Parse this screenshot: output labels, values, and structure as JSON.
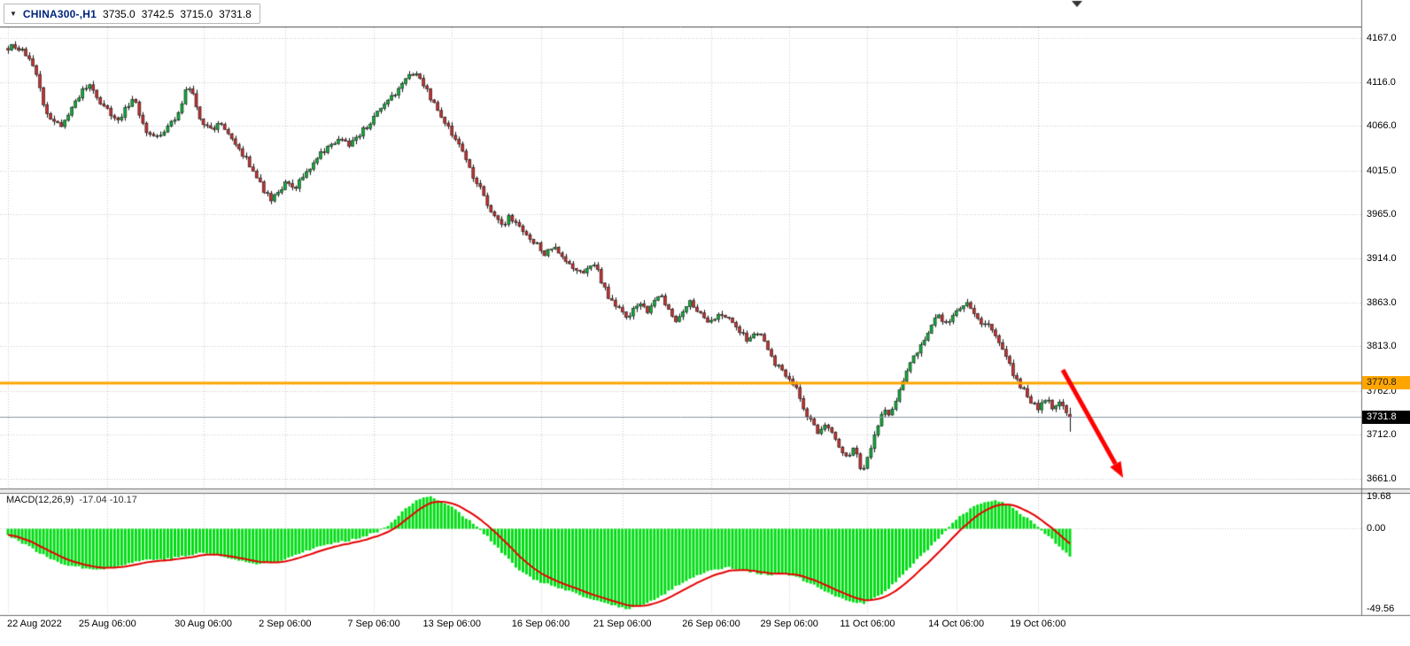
{
  "chart_data": {
    "type": "candlestick",
    "platform_style": "metatrader-chart-window",
    "title": "CHINA300-,H1",
    "symbol": "CHINA300-",
    "timeframe": "H1",
    "dropdown_icon": "▼",
    "ohlc_display": {
      "open": "3735.0",
      "high": "3742.5",
      "low": "3715.0",
      "close": "3731.8"
    },
    "price_axis_ticks": [
      "4167.0",
      "4116.0",
      "4066.0",
      "4015.0",
      "3965.0",
      "3914.0",
      "3863.0",
      "3813.0",
      "3762.0",
      "3712.0",
      "3661.0"
    ],
    "price_axis_ref": {
      "tick_top_value": 4167.0,
      "tick_bottom_value": 3661.0
    },
    "time_axis_labels": [
      "22 Aug 2022",
      "25 Aug 06:00",
      "30 Aug 06:00",
      "2 Sep 06:00",
      "7 Sep 06:00",
      "13 Sep 06:00",
      "16 Sep 06:00",
      "21 Sep 06:00",
      "26 Sep 06:00",
      "29 Sep 06:00",
      "11 Oct 06:00",
      "14 Oct 06:00",
      "19 Oct 06:00"
    ],
    "time_label_indices": [
      0,
      28,
      55,
      78,
      103,
      125,
      150,
      173,
      198,
      220,
      242,
      267,
      290
    ],
    "num_candles": 300,
    "horizontal_line": {
      "price": 3770.8,
      "label": "3770.8",
      "color": "#FFA500"
    },
    "current_price": {
      "value": 3731.8,
      "label": "3731.8"
    },
    "trend_arrow": {
      "from_index": 297,
      "from_price": 3786,
      "to_index": 314,
      "to_price": 3662,
      "color": "#FF0000"
    },
    "price_anchors": [
      [
        0,
        4155
      ],
      [
        3,
        4158
      ],
      [
        6,
        4146
      ],
      [
        9,
        4122
      ],
      [
        11,
        4086
      ],
      [
        13,
        4072
      ],
      [
        16,
        4066
      ],
      [
        19,
        4088
      ],
      [
        22,
        4108
      ],
      [
        24,
        4112
      ],
      [
        26,
        4096
      ],
      [
        29,
        4082
      ],
      [
        32,
        4070
      ],
      [
        34,
        4088
      ],
      [
        36,
        4098
      ],
      [
        38,
        4078
      ],
      [
        40,
        4058
      ],
      [
        43,
        4052
      ],
      [
        46,
        4066
      ],
      [
        49,
        4080
      ],
      [
        51,
        4116
      ],
      [
        53,
        4100
      ],
      [
        55,
        4072
      ],
      [
        58,
        4062
      ],
      [
        61,
        4070
      ],
      [
        63,
        4052
      ],
      [
        66,
        4038
      ],
      [
        69,
        4020
      ],
      [
        71,
        4005
      ],
      [
        73,
        3990
      ],
      [
        75,
        3980
      ],
      [
        77,
        3992
      ],
      [
        79,
        4000
      ],
      [
        81,
        3992
      ],
      [
        83,
        4005
      ],
      [
        85,
        4015
      ],
      [
        88,
        4032
      ],
      [
        91,
        4042
      ],
      [
        94,
        4050
      ],
      [
        97,
        4045
      ],
      [
        100,
        4058
      ],
      [
        103,
        4072
      ],
      [
        106,
        4088
      ],
      [
        109,
        4100
      ],
      [
        112,
        4115
      ],
      [
        114,
        4124
      ],
      [
        116,
        4128
      ],
      [
        118,
        4112
      ],
      [
        120,
        4095
      ],
      [
        122,
        4082
      ],
      [
        124,
        4068
      ],
      [
        126,
        4055
      ],
      [
        128,
        4045
      ],
      [
        130,
        4025
      ],
      [
        132,
        4005
      ],
      [
        134,
        3992
      ],
      [
        136,
        3972
      ],
      [
        138,
        3958
      ],
      [
        140,
        3952
      ],
      [
        142,
        3962
      ],
      [
        144,
        3955
      ],
      [
        146,
        3942
      ],
      [
        148,
        3935
      ],
      [
        150,
        3928
      ],
      [
        152,
        3918
      ],
      [
        154,
        3928
      ],
      [
        156,
        3918
      ],
      [
        158,
        3908
      ],
      [
        160,
        3902
      ],
      [
        162,
        3898
      ],
      [
        164,
        3902
      ],
      [
        166,
        3908
      ],
      [
        168,
        3885
      ],
      [
        170,
        3868
      ],
      [
        173,
        3855
      ],
      [
        175,
        3842
      ],
      [
        177,
        3858
      ],
      [
        179,
        3865
      ],
      [
        181,
        3850
      ],
      [
        183,
        3872
      ],
      [
        185,
        3868
      ],
      [
        187,
        3855
      ],
      [
        189,
        3842
      ],
      [
        191,
        3858
      ],
      [
        193,
        3865
      ],
      [
        195,
        3852
      ],
      [
        197,
        3845
      ],
      [
        199,
        3840
      ],
      [
        201,
        3852
      ],
      [
        203,
        3848
      ],
      [
        205,
        3838
      ],
      [
        207,
        3830
      ],
      [
        209,
        3820
      ],
      [
        211,
        3832
      ],
      [
        213,
        3825
      ],
      [
        215,
        3805
      ],
      [
        217,
        3792
      ],
      [
        219,
        3785
      ],
      [
        221,
        3775
      ],
      [
        223,
        3762
      ],
      [
        225,
        3740
      ],
      [
        227,
        3725
      ],
      [
        229,
        3712
      ],
      [
        231,
        3722
      ],
      [
        233,
        3712
      ],
      [
        235,
        3698
      ],
      [
        237,
        3685
      ],
      [
        239,
        3700
      ],
      [
        241,
        3668
      ],
      [
        243,
        3690
      ],
      [
        245,
        3715
      ],
      [
        247,
        3742
      ],
      [
        249,
        3735
      ],
      [
        251,
        3755
      ],
      [
        253,
        3775
      ],
      [
        255,
        3795
      ],
      [
        257,
        3810
      ],
      [
        259,
        3825
      ],
      [
        261,
        3840
      ],
      [
        263,
        3848
      ],
      [
        265,
        3838
      ],
      [
        267,
        3848
      ],
      [
        269,
        3858
      ],
      [
        271,
        3862
      ],
      [
        273,
        3850
      ],
      [
        275,
        3840
      ],
      [
        277,
        3835
      ],
      [
        279,
        3822
      ],
      [
        281,
        3805
      ],
      [
        283,
        3788
      ],
      [
        285,
        3772
      ],
      [
        287,
        3762
      ],
      [
        289,
        3748
      ],
      [
        291,
        3742
      ],
      [
        293,
        3755
      ],
      [
        295,
        3742
      ],
      [
        297,
        3748
      ],
      [
        299,
        3732
      ]
    ],
    "macd": {
      "label": "MACD(12,26,9)",
      "macd_value": "-17.04",
      "signal_value": "-10.17",
      "axis_ticks": [
        "19.68",
        "0.00",
        "-49.56"
      ],
      "axis_tick_values": [
        19.68,
        0.0,
        -49.56
      ],
      "max": 19.68,
      "min": -49.56,
      "anchors": [
        [
          0,
          -4
        ],
        [
          4,
          -9
        ],
        [
          8,
          -14
        ],
        [
          12,
          -19
        ],
        [
          16,
          -22
        ],
        [
          20,
          -24
        ],
        [
          25,
          -25
        ],
        [
          30,
          -24
        ],
        [
          35,
          -21
        ],
        [
          40,
          -19
        ],
        [
          45,
          -19
        ],
        [
          50,
          -17
        ],
        [
          55,
          -15
        ],
        [
          60,
          -17
        ],
        [
          65,
          -20
        ],
        [
          70,
          -22
        ],
        [
          75,
          -21
        ],
        [
          80,
          -17
        ],
        [
          85,
          -13
        ],
        [
          90,
          -10
        ],
        [
          95,
          -8
        ],
        [
          100,
          -5
        ],
        [
          104,
          -2
        ],
        [
          107,
          2
        ],
        [
          110,
          8
        ],
        [
          113,
          14
        ],
        [
          116,
          18
        ],
        [
          119,
          19.7
        ],
        [
          122,
          17
        ],
        [
          125,
          13
        ],
        [
          128,
          8
        ],
        [
          131,
          3
        ],
        [
          134,
          -3
        ],
        [
          137,
          -10
        ],
        [
          140,
          -17
        ],
        [
          143,
          -24
        ],
        [
          146,
          -29
        ],
        [
          150,
          -33
        ],
        [
          154,
          -36
        ],
        [
          158,
          -39
        ],
        [
          162,
          -42
        ],
        [
          166,
          -45
        ],
        [
          170,
          -47
        ],
        [
          174,
          -49.5
        ],
        [
          178,
          -48
        ],
        [
          182,
          -44
        ],
        [
          186,
          -39
        ],
        [
          190,
          -33
        ],
        [
          194,
          -29
        ],
        [
          198,
          -26
        ],
        [
          202,
          -24
        ],
        [
          206,
          -25
        ],
        [
          210,
          -27
        ],
        [
          214,
          -29
        ],
        [
          218,
          -28
        ],
        [
          222,
          -30
        ],
        [
          226,
          -34
        ],
        [
          230,
          -39
        ],
        [
          234,
          -43
        ],
        [
          238,
          -45
        ],
        [
          241,
          -46
        ],
        [
          244,
          -43
        ],
        [
          247,
          -39
        ],
        [
          250,
          -33
        ],
        [
          253,
          -26
        ],
        [
          256,
          -19
        ],
        [
          259,
          -13
        ],
        [
          262,
          -6
        ],
        [
          264,
          -2
        ],
        [
          266,
          3
        ],
        [
          269,
          9
        ],
        [
          272,
          13
        ],
        [
          275,
          16
        ],
        [
          278,
          17.5
        ],
        [
          281,
          15
        ],
        [
          284,
          11
        ],
        [
          287,
          6
        ],
        [
          290,
          1
        ],
        [
          292,
          -3
        ],
        [
          294,
          -7
        ],
        [
          296,
          -11
        ],
        [
          298,
          -15
        ],
        [
          299,
          -17.04
        ]
      ]
    },
    "colors": {
      "bull": "#0CAF3A",
      "bear": "#C62F2F",
      "candle_outline": "#141414",
      "wick": "#141414",
      "histogram": "#00DC14",
      "signal_line": "#E60000",
      "grid": "#c9c9c9",
      "separator": "#6e6e6e",
      "background": "#FFFFFF",
      "current_price_line": "#8a93a0"
    }
  }
}
